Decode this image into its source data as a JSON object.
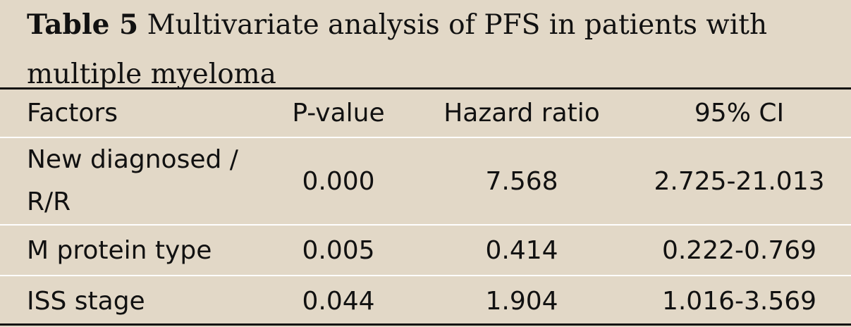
{
  "caption": {
    "label": "Table 5",
    "text": "Multivariate analysis of PFS in patients with multiple myeloma"
  },
  "columns": [
    "Factors",
    "P-value",
    "Hazard ratio",
    "95% CI"
  ],
  "rows": [
    {
      "factor": "New diagnosed / R/R",
      "p_value": "0.000",
      "hazard_ratio": "7.568",
      "ci": "2.725-21.013"
    },
    {
      "factor": "M protein type",
      "p_value": "0.005",
      "hazard_ratio": "0.414",
      "ci": "0.222-0.769"
    },
    {
      "factor": "ISS stage",
      "p_value": "0.044",
      "hazard_ratio": "1.904",
      "ci": "1.016-3.569"
    }
  ],
  "colors": {
    "background": "#e2d8c7",
    "rule": "#111111",
    "separator": "#ffffff"
  }
}
